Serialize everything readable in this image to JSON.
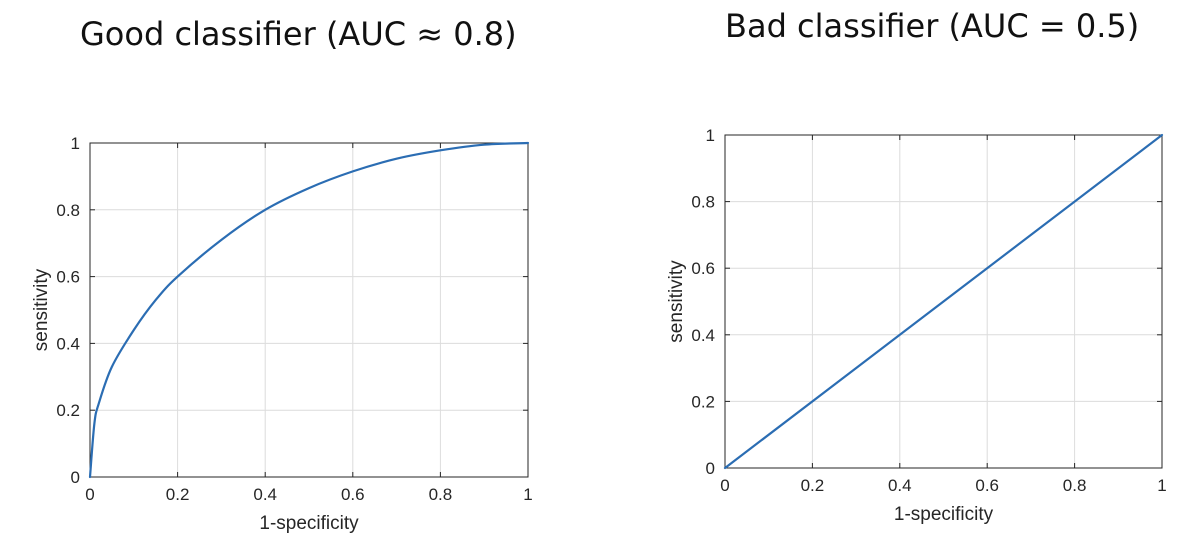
{
  "chart_data": [
    {
      "type": "line",
      "title": "Good classifier (AUC ≈ 0.8)",
      "xlabel": "1-specificity",
      "ylabel": "sensitivity",
      "xlim": [
        0,
        1
      ],
      "ylim": [
        0,
        1
      ],
      "xticks": [
        "0",
        "0.2",
        "0.4",
        "0.6",
        "0.8",
        "1"
      ],
      "yticks": [
        "0",
        "0.2",
        "0.4",
        "0.6",
        "0.8",
        "1"
      ],
      "grid": true,
      "series_color": "#2b6db3",
      "series": [
        {
          "x": [
            0,
            0.01,
            0.02,
            0.05,
            0.1,
            0.15,
            0.2,
            0.3,
            0.4,
            0.5,
            0.6,
            0.7,
            0.8,
            0.9,
            1.0
          ],
          "y": [
            0,
            0.16,
            0.22,
            0.33,
            0.44,
            0.53,
            0.6,
            0.71,
            0.8,
            0.865,
            0.915,
            0.953,
            0.978,
            0.995,
            1.0
          ]
        }
      ]
    },
    {
      "type": "line",
      "title": "Bad classifier (AUC = 0.5)",
      "xlabel": "1-specificity",
      "ylabel": "sensitivity",
      "xlim": [
        0,
        1
      ],
      "ylim": [
        0,
        1
      ],
      "xticks": [
        "0",
        "0.2",
        "0.4",
        "0.6",
        "0.8",
        "1"
      ],
      "yticks": [
        "0",
        "0.2",
        "0.4",
        "0.6",
        "0.8",
        "1"
      ],
      "grid": true,
      "series_color": "#2b6db3",
      "series": [
        {
          "x": [
            0,
            1
          ],
          "y": [
            0,
            1
          ]
        }
      ]
    }
  ]
}
